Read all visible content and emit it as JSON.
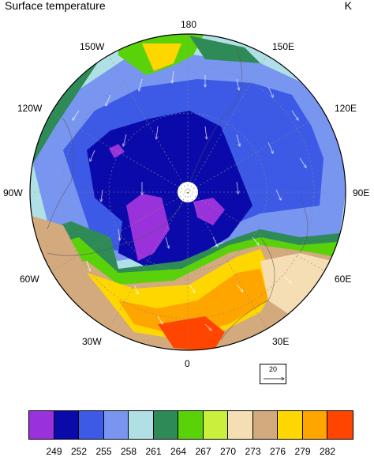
{
  "title": "Surface temperature",
  "units": "K",
  "longitude_labels": {
    "lon_180": "180",
    "lon_150w": "150W",
    "lon_150e": "150E",
    "lon_120w": "120W",
    "lon_120e": "120E",
    "lon_90w": "90W",
    "lon_90e": "90E",
    "lon_60w": "60W",
    "lon_60e": "60E",
    "lon_30w": "30W",
    "lon_30e": "30E",
    "lon_0": "0"
  },
  "reference_vector": {
    "label": "20"
  },
  "colorbar": {
    "colors": [
      "#9a32dc",
      "#0a0aaa",
      "#3c5ae6",
      "#7896f0",
      "#b0e0e6",
      "#2e8b57",
      "#5ad20a",
      "#c8f03c",
      "#f5deb3",
      "#d2aa7d",
      "#ffd700",
      "#ffa500",
      "#ff4500"
    ],
    "labels": [
      "249",
      "252",
      "255",
      "258",
      "261",
      "264",
      "267",
      "270",
      "273",
      "276",
      "279",
      "282"
    ]
  }
}
